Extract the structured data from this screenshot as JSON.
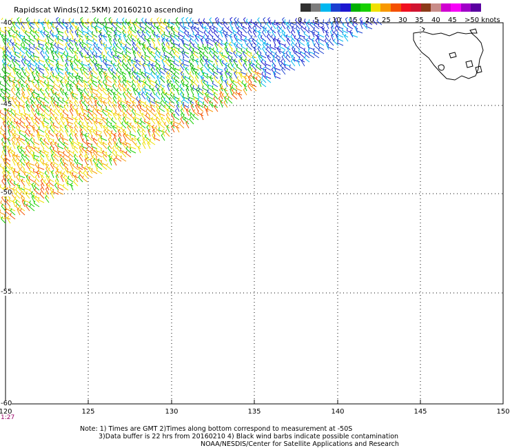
{
  "title": "Rapidscat Winds(12.5KM) 20160210 ascending",
  "legend": {
    "colors": [
      "#303030",
      "#7c7c7c",
      "#00b8f0",
      "#1a3fd0",
      "#1c18d0",
      "#00b000",
      "#16d000",
      "#f0e000",
      "#f89800",
      "#f45000",
      "#f01020",
      "#d01430",
      "#8c3a18",
      "#c88c88",
      "#d000d0",
      "#f800f8",
      "#a000c8",
      "#5a00a0"
    ],
    "labels": [
      "0",
      "5",
      "10",
      "15",
      "20",
      "25",
      "30",
      "35",
      "40",
      "45",
      ">50 knots"
    ]
  },
  "axes": {
    "lat_labels": [
      "-40",
      "-45",
      "-50",
      "-55",
      "-60"
    ],
    "lon_labels": [
      "120",
      "125",
      "130",
      "135",
      "140",
      "145",
      "150"
    ],
    "first_time": "1:27"
  },
  "notes": {
    "line1": "Note: 1) Times are GMT 2)Times along bottom correspond to measurement at -50S",
    "line2": "3)Data buffer is 22 hrs from 20160210 4) Black wind barbs indicate possible contamination",
    "line3": "NOAA/NESDIS/Center for Satellite Applications and Research"
  },
  "map": {
    "land": "Tasmania"
  }
}
